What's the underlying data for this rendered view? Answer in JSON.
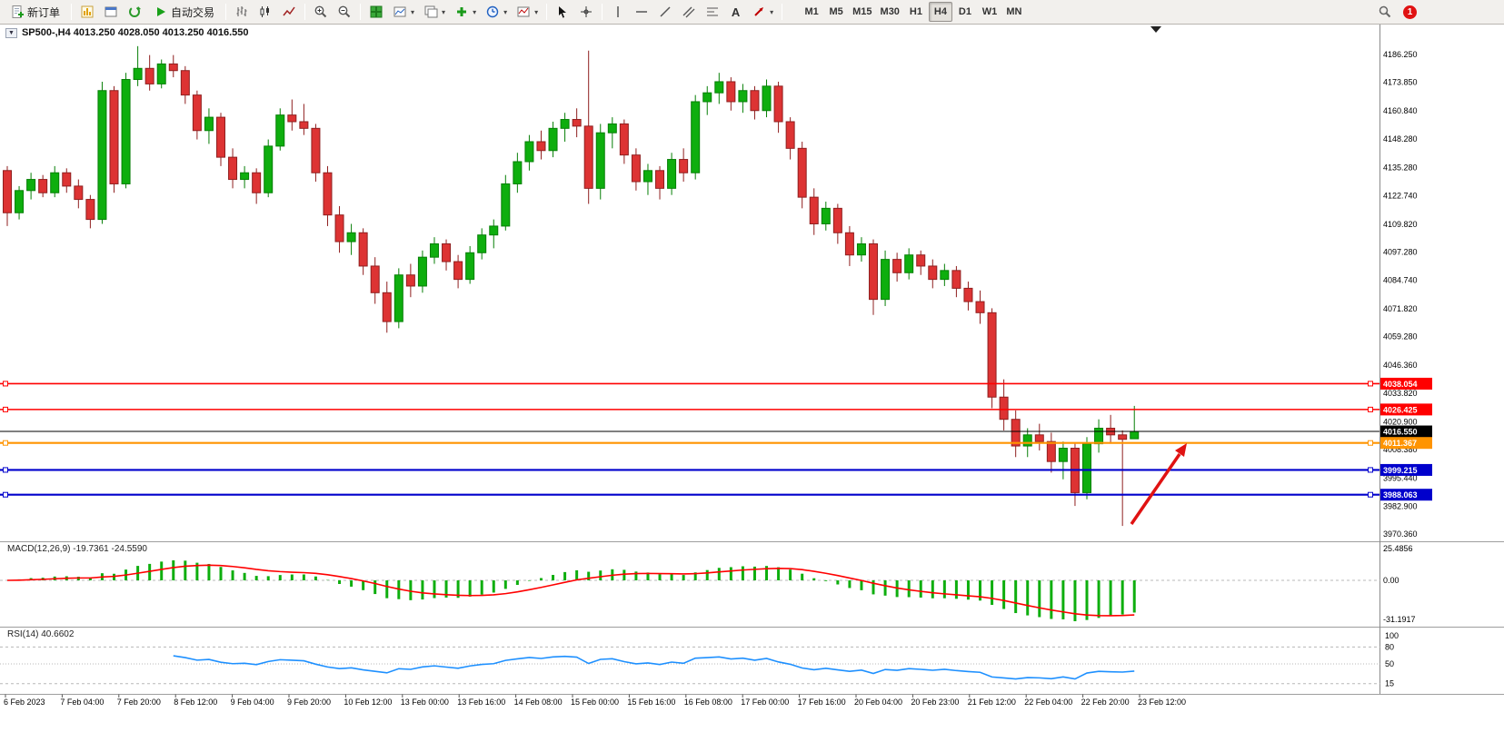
{
  "toolbar": {
    "new_order_label": "新订单",
    "auto_trading_label": "自动交易",
    "text_tool_label": "A",
    "timeframes": [
      "M1",
      "M5",
      "M15",
      "M30",
      "H1",
      "H4",
      "D1",
      "W1",
      "MN"
    ],
    "active_timeframe": "H4",
    "badge_count": "1"
  },
  "chart_header": {
    "title": "SP500-,H4 4013.250 4028.050 4013.250 4016.550"
  },
  "indicators": {
    "macd_label": "MACD(12,26,9) -19.7361 -24.5590",
    "rsi_label": "RSI(14) 40.6602"
  },
  "colors": {
    "candle_up": "#0eae0e",
    "candle_up_edge": "#067f06",
    "candle_down": "#dd3333",
    "candle_down_edge": "#8f1f1f",
    "line_red": "#ff0000",
    "line_orange": "#ff9400",
    "line_blue": "#0000cc",
    "price_line": "#000000",
    "macd_hist": "#0eae0e",
    "macd_signal": "#ff0000",
    "rsi_line": "#1e90ff",
    "arrow": "#e01212"
  },
  "chart_data": {
    "type": "candlestick",
    "symbol": "SP500-",
    "period": "H4",
    "current_ohlc": {
      "open": 4013.25,
      "high": 4028.05,
      "low": 4013.25,
      "close": 4016.55
    },
    "price_axis_ticks": [
      "4186.250",
      "4173.850",
      "4160.840",
      "4148.280",
      "4135.280",
      "4122.740",
      "4109.820",
      "4097.280",
      "4084.740",
      "4071.820",
      "4059.280",
      "4046.360",
      "4033.820",
      "4020.900",
      "4008.380",
      "3995.440",
      "3982.900",
      "3970.360"
    ],
    "time_axis_ticks": [
      "6 Feb 2023",
      "7 Feb 04:00",
      "7 Feb 20:00",
      "8 Feb 12:00",
      "9 Feb 04:00",
      "9 Feb 20:00",
      "10 Feb 12:00",
      "13 Feb 00:00",
      "13 Feb 16:00",
      "14 Feb 08:00",
      "15 Feb 00:00",
      "15 Feb 16:00",
      "16 Feb 08:00",
      "17 Feb 00:00",
      "17 Feb 16:00",
      "20 Feb 04:00",
      "20 Feb 23:00",
      "21 Feb 12:00",
      "22 Feb 04:00",
      "22 Feb 20:00",
      "23 Feb 12:00"
    ],
    "horizontal_levels": [
      {
        "label": "4038.054",
        "price": 4038.054,
        "type": "resistance",
        "color": "#ff0000"
      },
      {
        "label": "4026.425",
        "price": 4026.425,
        "type": "resistance",
        "color": "#ff0000"
      },
      {
        "label": "4016.550",
        "price": 4016.55,
        "type": "current-price",
        "color": "#000000"
      },
      {
        "label": "4011.367",
        "price": 4011.367,
        "type": "level",
        "color": "#ff9400"
      },
      {
        "label": "3999.215",
        "price": 3999.215,
        "type": "support",
        "color": "#0000cc"
      },
      {
        "label": "3988.063",
        "price": 3988.063,
        "type": "support",
        "color": "#0000cc"
      }
    ],
    "candles": [
      [
        4134,
        4136,
        4109,
        4115
      ],
      [
        4115,
        4127,
        4112,
        4125
      ],
      [
        4125,
        4133,
        4121,
        4130
      ],
      [
        4130,
        4132,
        4122,
        4124
      ],
      [
        4124,
        4136,
        4122,
        4133
      ],
      [
        4133,
        4135,
        4124,
        4127
      ],
      [
        4127,
        4130,
        4117,
        4121
      ],
      [
        4121,
        4123,
        4108,
        4112
      ],
      [
        4112,
        4174,
        4110,
        4170
      ],
      [
        4170,
        4172,
        4124,
        4128
      ],
      [
        4128,
        4178,
        4126,
        4175
      ],
      [
        4175,
        4190,
        4172,
        4180
      ],
      [
        4180,
        4186,
        4170,
        4173
      ],
      [
        4173,
        4184,
        4171,
        4182
      ],
      [
        4182,
        4186,
        4176,
        4179
      ],
      [
        4179,
        4181,
        4164,
        4168
      ],
      [
        4168,
        4170,
        4148,
        4152
      ],
      [
        4152,
        4162,
        4146,
        4158
      ],
      [
        4158,
        4160,
        4136,
        4140
      ],
      [
        4140,
        4144,
        4126,
        4130
      ],
      [
        4130,
        4136,
        4126,
        4133
      ],
      [
        4133,
        4135,
        4119,
        4124
      ],
      [
        4124,
        4148,
        4122,
        4145
      ],
      [
        4145,
        4162,
        4143,
        4159
      ],
      [
        4159,
        4166,
        4152,
        4156
      ],
      [
        4156,
        4164,
        4150,
        4153
      ],
      [
        4153,
        4155,
        4129,
        4133
      ],
      [
        4133,
        4136,
        4109,
        4114
      ],
      [
        4114,
        4118,
        4097,
        4102
      ],
      [
        4102,
        4110,
        4096,
        4106
      ],
      [
        4106,
        4108,
        4087,
        4091
      ],
      [
        4091,
        4095,
        4074,
        4079
      ],
      [
        4079,
        4084,
        4061,
        4066
      ],
      [
        4066,
        4090,
        4063,
        4087
      ],
      [
        4087,
        4092,
        4077,
        4082
      ],
      [
        4082,
        4098,
        4079,
        4095
      ],
      [
        4095,
        4104,
        4092,
        4101
      ],
      [
        4101,
        4103,
        4089,
        4093
      ],
      [
        4093,
        4096,
        4081,
        4085
      ],
      [
        4085,
        4100,
        4083,
        4097
      ],
      [
        4097,
        4108,
        4094,
        4105
      ],
      [
        4105,
        4112,
        4099,
        4109
      ],
      [
        4109,
        4132,
        4107,
        4128
      ],
      [
        4128,
        4142,
        4124,
        4138
      ],
      [
        4138,
        4150,
        4134,
        4147
      ],
      [
        4147,
        4152,
        4139,
        4143
      ],
      [
        4143,
        4156,
        4140,
        4153
      ],
      [
        4153,
        4160,
        4147,
        4157
      ],
      [
        4157,
        4162,
        4149,
        4154
      ],
      [
        4154,
        4188,
        4119,
        4126
      ],
      [
        4126,
        4155,
        4121,
        4151
      ],
      [
        4151,
        4158,
        4144,
        4155
      ],
      [
        4155,
        4157,
        4137,
        4141
      ],
      [
        4141,
        4144,
        4125,
        4129
      ],
      [
        4129,
        4137,
        4123,
        4134
      ],
      [
        4134,
        4136,
        4121,
        4126
      ],
      [
        4126,
        4142,
        4123,
        4139
      ],
      [
        4139,
        4144,
        4129,
        4133
      ],
      [
        4133,
        4168,
        4130,
        4165
      ],
      [
        4165,
        4172,
        4159,
        4169
      ],
      [
        4169,
        4178,
        4164,
        4174
      ],
      [
        4174,
        4176,
        4161,
        4165
      ],
      [
        4165,
        4173,
        4160,
        4170
      ],
      [
        4170,
        4172,
        4157,
        4161
      ],
      [
        4161,
        4175,
        4158,
        4172
      ],
      [
        4172,
        4174,
        4151,
        4156
      ],
      [
        4156,
        4158,
        4139,
        4144
      ],
      [
        4144,
        4147,
        4117,
        4122
      ],
      [
        4122,
        4126,
        4105,
        4110
      ],
      [
        4110,
        4120,
        4107,
        4117
      ],
      [
        4117,
        4119,
        4101,
        4106
      ],
      [
        4106,
        4109,
        4091,
        4096
      ],
      [
        4096,
        4104,
        4093,
        4101
      ],
      [
        4101,
        4103,
        4069,
        4076
      ],
      [
        4076,
        4098,
        4073,
        4094
      ],
      [
        4094,
        4097,
        4084,
        4088
      ],
      [
        4088,
        4099,
        4085,
        4096
      ],
      [
        4096,
        4098,
        4087,
        4091
      ],
      [
        4091,
        4094,
        4081,
        4085
      ],
      [
        4085,
        4092,
        4082,
        4089
      ],
      [
        4089,
        4091,
        4077,
        4081
      ],
      [
        4081,
        4084,
        4071,
        4075
      ],
      [
        4075,
        4080,
        4065,
        4070
      ],
      [
        4070,
        4072,
        4027,
        4032
      ],
      [
        4032,
        4040,
        4017,
        4022
      ],
      [
        4022,
        4026,
        4005,
        4010
      ],
      [
        4010,
        4018,
        4005,
        4015
      ],
      [
        4015,
        4020,
        4008,
        4012
      ],
      [
        4012,
        4016,
        3998,
        4003
      ],
      [
        4003,
        4012,
        3995,
        4009
      ],
      [
        4009,
        4011,
        3983,
        3989
      ],
      [
        3989,
        4014,
        3986,
        4011
      ],
      [
        4011,
        4022,
        4007,
        4018
      ],
      [
        4018,
        4024,
        4011,
        4015
      ],
      [
        4015,
        4017,
        3974,
        4013
      ],
      [
        4013.25,
        4028.05,
        4013.25,
        4016.55
      ]
    ],
    "macd": {
      "params": "12,26,9",
      "value": "-19.7361",
      "signal_value": "-24.5590",
      "axis_labels": [
        "25.4856",
        "0.00",
        "-31.1917"
      ]
    },
    "rsi": {
      "period": "14",
      "value": "40.6602",
      "axis_labels": [
        "100",
        "80",
        "50",
        "15"
      ]
    }
  }
}
